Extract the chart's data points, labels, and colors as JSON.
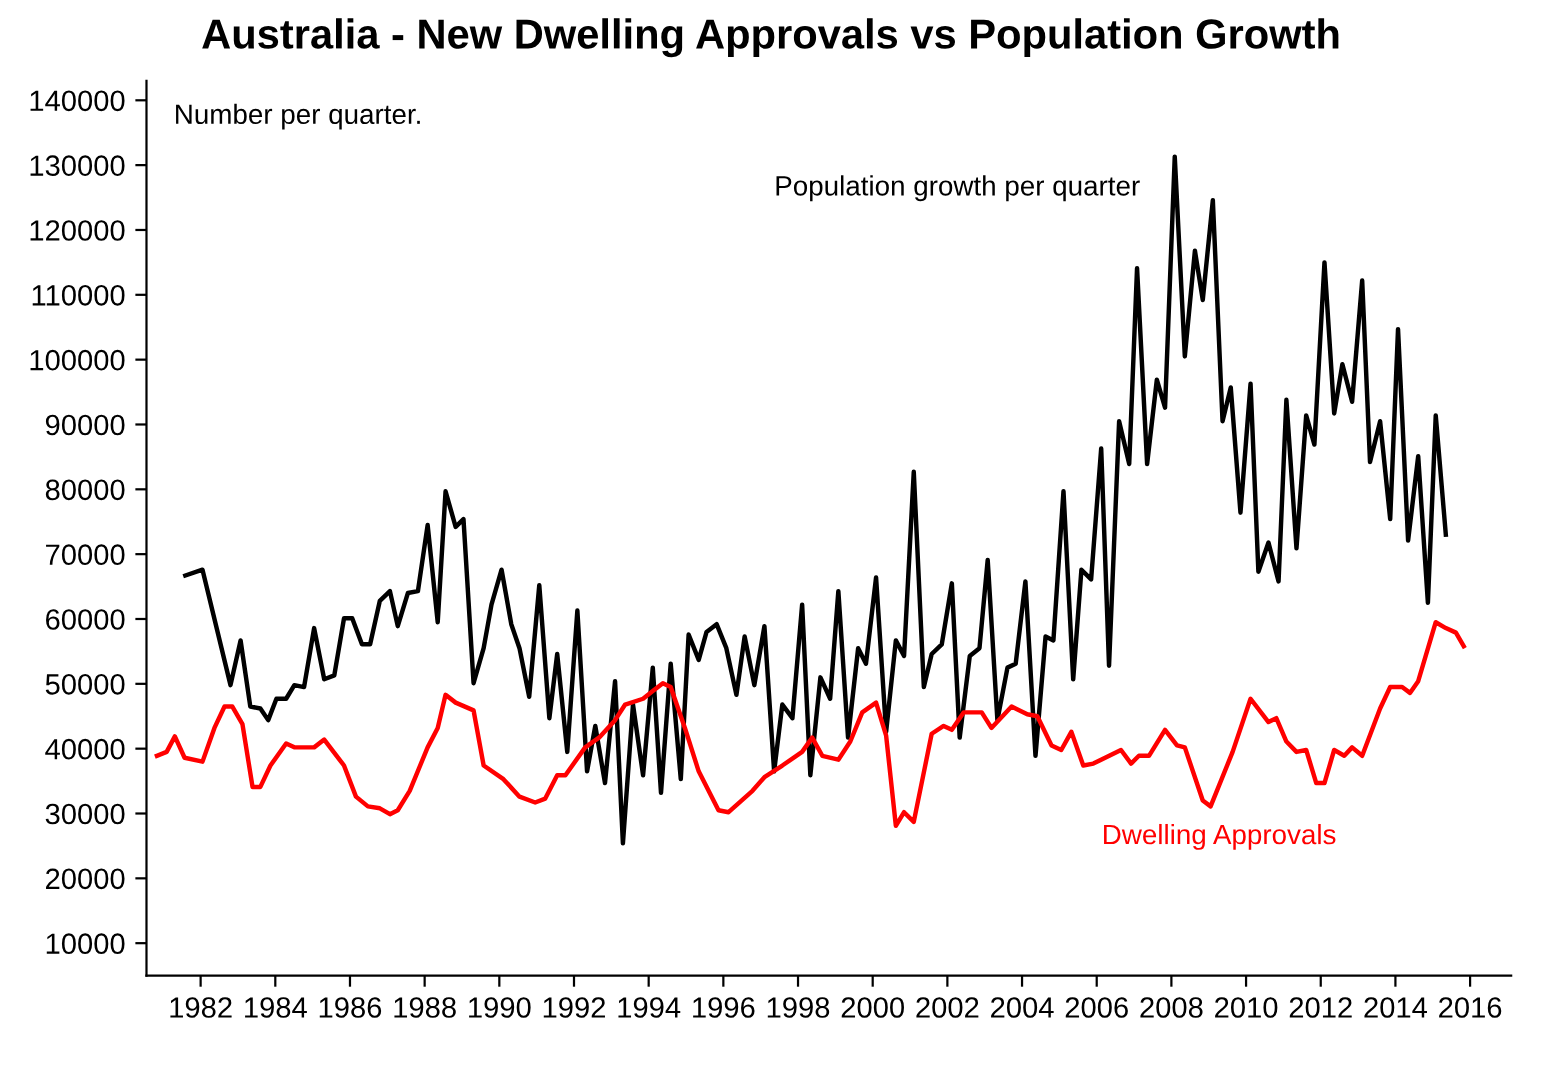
{
  "chart_data": {
    "type": "line",
    "title": "Australia - New Dwelling Approvals vs Population Growth",
    "annotations": [
      "Number per quarter."
    ],
    "xlim": [
      1980.55,
      2017.1
    ],
    "xticks": [
      1982,
      1984,
      1986,
      1988,
      1990,
      1992,
      1994,
      1996,
      1998,
      2000,
      2002,
      2004,
      2006,
      2008,
      2010,
      2012,
      2014,
      2016
    ],
    "ylim": [
      5000,
      143000
    ],
    "yticks": [
      10000,
      20000,
      30000,
      40000,
      50000,
      60000,
      70000,
      80000,
      90000,
      100000,
      110000,
      120000,
      130000,
      140000
    ],
    "grid": false,
    "legend": false,
    "marker": "none",
    "line_style": "solid",
    "series": [
      {
        "name": "Population growth per quarter",
        "color": "#000000",
        "x": [
          1981.59,
          1982.05,
          1982.8,
          1983.07,
          1983.33,
          1983.6,
          1983.81,
          1984.03,
          1984.29,
          1984.51,
          1984.77,
          1985.04,
          1985.31,
          1985.58,
          1985.84,
          1986.06,
          1986.32,
          1986.54,
          1986.8,
          1987.07,
          1987.28,
          1987.55,
          1987.82,
          1988.08,
          1988.35,
          1988.56,
          1988.83,
          1989.04,
          1989.31,
          1989.58,
          1989.79,
          1990.06,
          1990.32,
          1990.54,
          1990.8,
          1991.07,
          1991.34,
          1991.55,
          1991.82,
          1992.09,
          1992.35,
          1992.57,
          1992.83,
          1993.1,
          1993.31,
          1993.58,
          1993.85,
          1994.11,
          1994.33,
          1994.59,
          1994.86,
          1995.07,
          1995.34,
          1995.55,
          1995.82,
          1996.08,
          1996.35,
          1996.57,
          1996.83,
          1997.1,
          1997.36,
          1997.58,
          1997.85,
          1998.11,
          1998.33,
          1998.6,
          1998.86,
          1999.08,
          1999.34,
          1999.61,
          1999.82,
          2000.09,
          2000.36,
          2000.62,
          2000.84,
          2001.1,
          2001.37,
          2001.58,
          2001.85,
          2002.12,
          2002.33,
          2002.6,
          2002.86,
          2003.08,
          2003.34,
          2003.61,
          2003.83,
          2004.09,
          2004.36,
          2004.63,
          2004.84,
          2005.11,
          2005.37,
          2005.59,
          2005.85,
          2006.12,
          2006.33,
          2006.6,
          2006.87,
          2007.08,
          2007.35,
          2007.61,
          2007.83,
          2008.09,
          2008.36,
          2008.63,
          2008.84,
          2009.11,
          2009.37,
          2009.59,
          2009.85,
          2010.12,
          2010.33,
          2010.6,
          2010.87,
          2011.08,
          2011.35,
          2011.61,
          2011.83,
          2012.1,
          2012.36,
          2012.58,
          2012.84,
          2013.11,
          2013.32,
          2013.59,
          2013.86,
          2014.07,
          2014.34,
          2014.61,
          2014.87,
          2015.08,
          2015.35
        ],
        "values": [
          66700,
          67600,
          49800,
          56700,
          46500,
          46200,
          44400,
          47700,
          47700,
          49800,
          49500,
          58600,
          50700,
          51300,
          60100,
          60100,
          56100,
          56100,
          62800,
          64300,
          58900,
          64000,
          64300,
          74500,
          59500,
          79700,
          74200,
          75400,
          50100,
          55500,
          62200,
          67600,
          59200,
          55500,
          48000,
          65200,
          44700,
          54600,
          39500,
          61300,
          36500,
          43500,
          34700,
          50400,
          25400,
          46800,
          35900,
          52500,
          33200,
          53100,
          35300,
          57600,
          53700,
          58000,
          59200,
          55500,
          48300,
          57300,
          49800,
          58900,
          36500,
          46800,
          44700,
          62200,
          35900,
          51000,
          47700,
          64300,
          41700,
          55500,
          53100,
          66400,
          42600,
          56700,
          54300,
          82700,
          49500,
          54600,
          56100,
          65500,
          41700,
          54300,
          55500,
          69100,
          44400,
          52500,
          53100,
          65800,
          38900,
          57300,
          56700,
          79700,
          50700,
          67600,
          66100,
          86300,
          52800,
          90500,
          83900,
          114100,
          83900,
          96900,
          92600,
          131300,
          100500,
          116800,
          109200,
          124600,
          90500,
          95700,
          76400,
          96300,
          67300,
          71800,
          65800,
          93800,
          70900,
          91400,
          86900,
          115000,
          91700,
          99300,
          93500,
          112200,
          84200,
          90500,
          75400,
          104700,
          72100,
          85100,
          62500,
          91400,
          73000
        ]
      },
      {
        "name": "Dwelling Approvals",
        "color": "#ff0000",
        "x": [
          1980.83,
          1981.09,
          1981.31,
          1981.57,
          1982.05,
          1982.37,
          1982.64,
          1982.85,
          1983.12,
          1983.39,
          1983.6,
          1983.87,
          1984.29,
          1984.51,
          1985.04,
          1985.31,
          1985.84,
          1986.16,
          1986.48,
          1986.8,
          1987.07,
          1987.28,
          1987.6,
          1988.08,
          1988.35,
          1988.56,
          1988.83,
          1989.31,
          1989.58,
          1990.11,
          1990.54,
          1990.96,
          1991.23,
          1991.55,
          1991.77,
          1992.3,
          1992.67,
          1993.1,
          1993.37,
          1993.85,
          1994.11,
          1994.38,
          1994.59,
          1994.97,
          1995.34,
          1995.87,
          1996.14,
          1996.78,
          1997.1,
          1997.58,
          1998.11,
          1998.38,
          1998.65,
          1999.08,
          1999.4,
          1999.72,
          2000.09,
          2000.36,
          2000.62,
          2000.84,
          2001.1,
          2001.58,
          2001.9,
          2002.12,
          2002.44,
          2002.92,
          2003.18,
          2003.72,
          2004.14,
          2004.41,
          2004.79,
          2005.05,
          2005.32,
          2005.64,
          2005.91,
          2006.65,
          2006.92,
          2007.13,
          2007.4,
          2007.83,
          2008.15,
          2008.36,
          2008.84,
          2009.05,
          2009.64,
          2010.12,
          2010.6,
          2010.81,
          2011.08,
          2011.35,
          2011.61,
          2011.88,
          2012.1,
          2012.36,
          2012.63,
          2012.84,
          2013.11,
          2013.59,
          2013.86,
          2014.18,
          2014.39,
          2014.61,
          2015.08,
          2015.35,
          2015.62,
          2015.83
        ],
        "values": [
          38900,
          39500,
          41900,
          38600,
          38000,
          43200,
          46500,
          46500,
          43800,
          34100,
          34100,
          37400,
          40800,
          40200,
          40200,
          41400,
          37400,
          32600,
          31100,
          30800,
          29900,
          30500,
          33500,
          40200,
          43200,
          48300,
          47100,
          45900,
          37400,
          35300,
          32600,
          31700,
          32300,
          35900,
          35900,
          40200,
          41700,
          44400,
          46800,
          47700,
          48900,
          50100,
          49500,
          43200,
          36500,
          30500,
          30200,
          33500,
          35600,
          37400,
          39500,
          41700,
          38900,
          38300,
          41100,
          45600,
          47100,
          42000,
          28100,
          30200,
          28700,
          42300,
          43500,
          42900,
          45600,
          45600,
          43200,
          46500,
          45300,
          45000,
          40500,
          39800,
          42600,
          37400,
          37700,
          39800,
          37700,
          38900,
          38900,
          42900,
          40500,
          40200,
          32000,
          31100,
          39500,
          47700,
          44100,
          44700,
          41100,
          39500,
          39800,
          34700,
          34700,
          39800,
          38900,
          40200,
          38900,
          46200,
          49500,
          49500,
          48600,
          50400,
          59500,
          58600,
          57900,
          55800
        ]
      }
    ]
  }
}
